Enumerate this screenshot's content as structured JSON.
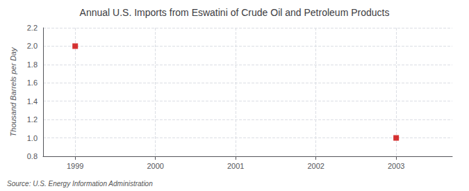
{
  "chart_data": {
    "type": "scatter",
    "title": "Annual U.S. Imports from Eswatini of Crude Oil and Petroleum Products",
    "ylabel": "Thousand Barrels per Day",
    "annotation": "Source: U.S. Energy Information Administration",
    "x": [
      1999,
      2003
    ],
    "values": [
      2.0,
      1.0
    ],
    "color": "#cc0000",
    "marker": "square",
    "xlim": [
      1998.6,
      2003.7
    ],
    "xticks": [
      1999,
      2000,
      2001,
      2002,
      2003
    ],
    "ylim": [
      0.8,
      2.2
    ],
    "yticks": [
      0.8,
      {
        "value": 1.0,
        "label": "1.0"
      },
      1.2,
      1.4,
      1.6,
      1.8,
      {
        "value": 2.0,
        "label": "2.0"
      },
      2.2
    ],
    "grid": true
  }
}
